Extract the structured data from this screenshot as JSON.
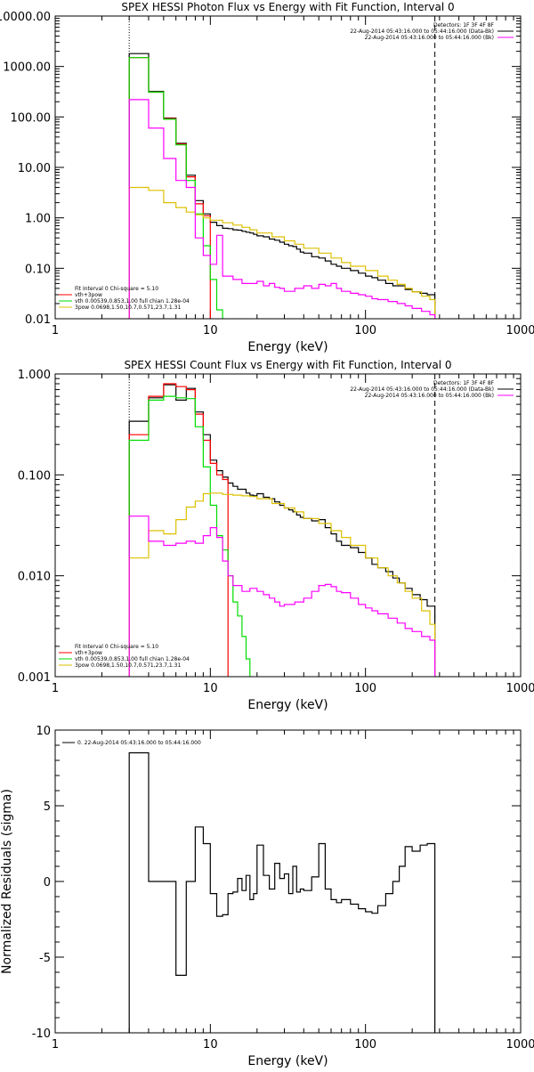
{
  "colors": {
    "axes": "#000000",
    "data": "#000000",
    "model_total": "#ff0000",
    "vth": "#00dd00",
    "power_law": "#ddc000",
    "background": "#ff00ff"
  },
  "chart_data": [
    {
      "type": "line",
      "title": "SPEX HESSI Photon Flux vs Energy with Fit Function, Interval 0",
      "xlabel": "Energy (keV)",
      "ylabel": "",
      "xscale": "log",
      "yscale": "log",
      "xlim": [
        1,
        1000
      ],
      "ylim": [
        0.01,
        10000
      ],
      "xticks": [
        1,
        10,
        100,
        1000
      ],
      "xtick_labels": [
        "1",
        "10",
        "100",
        "1000"
      ],
      "yticks": [
        0.01,
        0.1,
        1,
        10,
        100,
        1000,
        10000
      ],
      "ytick_labels": [
        "0.01",
        "0.10",
        "1.00",
        "10.00",
        "100.00",
        "1000.00",
        "10000.00"
      ],
      "vlines": [
        {
          "x": 3,
          "style": "dotted"
        },
        {
          "x": 280,
          "style": "dashed"
        }
      ],
      "legend_topright": [
        "Detectors: 1F 3F 4F 8F",
        "22-Aug-2014 05:43:16.000 to 05:44:16.000 (Data-Bk)",
        "22-Aug-2014 05:43:16.000 to 05:44:16.000 (Bk)"
      ],
      "legend_topright_colors": [
        "#ffffff",
        "#000000",
        "#ff00ff"
      ],
      "legend_bottomleft": [
        "Fit Interval 0   Chi-square = 5.10",
        "vth+3pow",
        "vth 0.00539,0.853,1.00  full chian 1.28e-04",
        "3pow 0.0698,1.50,10.7,0.571,23.7,1.31"
      ],
      "legend_bottomleft_colors": [
        "#ffffff",
        "#ff0000",
        "#00dd00",
        "#ddc000"
      ],
      "series": [
        {
          "name": "Data-Bk",
          "color": "#000000",
          "edges": [
            3,
            4,
            5,
            6,
            7,
            8,
            9,
            10,
            11,
            12,
            13,
            14,
            15,
            16,
            17,
            18,
            19,
            20,
            22,
            24,
            26,
            28,
            30,
            32,
            34,
            36,
            38,
            40,
            45,
            50,
            55,
            60,
            65,
            70,
            80,
            90,
            100,
            110,
            120,
            135,
            150,
            165,
            180,
            200,
            225,
            250,
            280
          ],
          "values": [
            1800,
            320,
            95,
            30,
            7,
            2.2,
            1.2,
            0.82,
            0.7,
            0.62,
            0.61,
            0.58,
            0.57,
            0.54,
            0.52,
            0.5,
            0.47,
            0.44,
            0.42,
            0.38,
            0.36,
            0.33,
            0.3,
            0.28,
            0.27,
            0.24,
            0.21,
            0.2,
            0.17,
            0.16,
            0.14,
            0.12,
            0.11,
            0.1,
            0.09,
            0.08,
            0.07,
            0.065,
            0.058,
            0.05,
            0.045,
            0.045,
            0.038,
            0.034,
            0.032,
            0.03
          ]
        },
        {
          "name": "vth+3pow",
          "color": "#ff0000",
          "edges": [
            3,
            4,
            5,
            6,
            7,
            8,
            9,
            10
          ],
          "values": [
            1500,
            310,
            93,
            29,
            6.5,
            1.9,
            1.1
          ]
        },
        {
          "name": "vth",
          "color": "#00dd00",
          "edges": [
            3,
            4,
            5,
            6,
            7,
            8,
            9,
            10,
            11,
            12,
            13
          ],
          "values": [
            1500,
            310,
            90,
            28,
            5.5,
            1.2,
            0.28,
            0.06,
            0.015,
            0.004
          ]
        },
        {
          "name": "3pow",
          "color": "#ddc000",
          "edges": [
            3,
            4,
            5,
            6,
            7,
            8,
            9,
            10,
            12,
            14,
            16,
            18,
            20,
            25,
            30,
            35,
            40,
            50,
            60,
            70,
            80,
            100,
            120,
            140,
            160,
            180,
            200,
            230,
            260,
            280
          ],
          "values": [
            4,
            3.5,
            2,
            1.6,
            1.3,
            1.15,
            1,
            0.9,
            0.8,
            0.72,
            0.65,
            0.58,
            0.5,
            0.42,
            0.35,
            0.3,
            0.25,
            0.2,
            0.16,
            0.13,
            0.11,
            0.09,
            0.07,
            0.058,
            0.048,
            0.04,
            0.034,
            0.028,
            0.024
          ]
        },
        {
          "name": "Bk",
          "color": "#ff00ff",
          "edges": [
            3,
            4,
            5,
            6,
            7,
            8,
            9,
            10,
            11,
            12,
            14,
            16,
            18,
            20,
            22,
            24,
            26,
            28,
            30,
            35,
            40,
            45,
            50,
            55,
            60,
            65,
            70,
            80,
            90,
            100,
            110,
            120,
            140,
            160,
            180,
            200,
            230,
            260,
            280
          ],
          "values": [
            220,
            60,
            15,
            5.5,
            4,
            0.4,
            0.18,
            0.12,
            0.45,
            0.07,
            0.06,
            0.05,
            0.05,
            0.055,
            0.045,
            0.05,
            0.042,
            0.04,
            0.035,
            0.04,
            0.045,
            0.04,
            0.048,
            0.045,
            0.05,
            0.04,
            0.035,
            0.032,
            0.03,
            0.028,
            0.025,
            0.024,
            0.022,
            0.02,
            0.018,
            0.016,
            0.014,
            0.012
          ]
        }
      ]
    },
    {
      "type": "line",
      "title": "SPEX HESSI Count Flux vs Energy with Fit Function, Interval 0",
      "xlabel": "Energy (keV)",
      "ylabel": "",
      "xscale": "log",
      "yscale": "log",
      "xlim": [
        1,
        1000
      ],
      "ylim": [
        0.001,
        1
      ],
      "xticks": [
        1,
        10,
        100,
        1000
      ],
      "xtick_labels": [
        "1",
        "10",
        "100",
        "1000"
      ],
      "yticks": [
        0.001,
        0.01,
        0.1,
        1
      ],
      "ytick_labels": [
        "0.001",
        "0.010",
        "0.100",
        "1.000"
      ],
      "vlines": [
        {
          "x": 3,
          "style": "dotted"
        },
        {
          "x": 280,
          "style": "dashed"
        }
      ],
      "legend_topright": [
        "Detectors: 1F 3F 4F 8F",
        "22-Aug-2014 05:43:16.000 to 05:44:16.000 (Data-Bk)",
        "22-Aug-2014 05:43:16.000 to 05:44:16.000 (Bk)"
      ],
      "legend_topright_colors": [
        "#ffffff",
        "#000000",
        "#ff00ff"
      ],
      "legend_bottomleft": [
        "Fit Interval 0   Chi-square = 5.10",
        "vth+3pow",
        "vth 0.00539,0.853,1.00  full chian 1.28e-04",
        "3pow 0.0698,1.50,10.7,0.571,23.7,1.31"
      ],
      "legend_bottomleft_colors": [
        "#ffffff",
        "#ff0000",
        "#00dd00",
        "#ddc000"
      ],
      "series": [
        {
          "name": "Data-Bk",
          "color": "#000000",
          "edges": [
            3,
            4,
            5,
            6,
            7,
            8,
            9,
            10,
            11,
            12,
            13,
            14,
            15,
            16,
            17,
            18,
            19,
            20,
            22,
            24,
            26,
            28,
            30,
            32,
            34,
            36,
            38,
            40,
            45,
            50,
            55,
            60,
            65,
            70,
            80,
            90,
            100,
            110,
            120,
            135,
            150,
            165,
            180,
            200,
            225,
            250,
            280
          ],
          "values": [
            0.34,
            0.58,
            0.78,
            0.55,
            0.72,
            0.42,
            0.25,
            0.14,
            0.11,
            0.095,
            0.083,
            0.077,
            0.072,
            0.072,
            0.066,
            0.063,
            0.062,
            0.065,
            0.06,
            0.058,
            0.054,
            0.05,
            0.047,
            0.045,
            0.043,
            0.04,
            0.038,
            0.037,
            0.035,
            0.036,
            0.03,
            0.026,
            0.022,
            0.02,
            0.019,
            0.017,
            0.015,
            0.013,
            0.012,
            0.011,
            0.0095,
            0.0085,
            0.0075,
            0.0065,
            0.0058,
            0.005
          ]
        },
        {
          "name": "vth+3pow",
          "color": "#ff0000",
          "edges": [
            3,
            4,
            5,
            6,
            7,
            8,
            9,
            10,
            11,
            12,
            13
          ],
          "values": [
            0.25,
            0.6,
            0.8,
            0.75,
            0.7,
            0.4,
            0.22,
            0.13,
            0.1,
            0.09
          ]
        },
        {
          "name": "vth",
          "color": "#00dd00",
          "edges": [
            3,
            4,
            5,
            6,
            7,
            8,
            9,
            10,
            11,
            12,
            13,
            14,
            15,
            16,
            17,
            18
          ],
          "values": [
            0.22,
            0.55,
            0.6,
            0.58,
            0.57,
            0.3,
            0.12,
            0.05,
            0.025,
            0.018,
            0.01,
            0.0055,
            0.004,
            0.0025,
            0.0015
          ]
        },
        {
          "name": "3pow",
          "color": "#ddc000",
          "edges": [
            3,
            4,
            5,
            6,
            7,
            8,
            9,
            10,
            12,
            14,
            16,
            18,
            20,
            25,
            30,
            35,
            40,
            50,
            60,
            70,
            80,
            100,
            120,
            140,
            160,
            180,
            200,
            230,
            260,
            280
          ],
          "values": [
            0.015,
            0.028,
            0.026,
            0.036,
            0.048,
            0.055,
            0.065,
            0.066,
            0.064,
            0.063,
            0.062,
            0.061,
            0.058,
            0.052,
            0.047,
            0.043,
            0.037,
            0.033,
            0.028,
            0.024,
            0.02,
            0.015,
            0.012,
            0.01,
            0.0085,
            0.007,
            0.006,
            0.0045,
            0.0033
          ]
        },
        {
          "name": "Bk",
          "color": "#ff00ff",
          "edges": [
            3,
            4,
            5,
            6,
            7,
            8,
            9,
            10,
            11,
            12,
            13,
            14,
            16,
            18,
            20,
            22,
            24,
            26,
            28,
            30,
            35,
            40,
            45,
            50,
            55,
            60,
            65,
            70,
            80,
            90,
            100,
            110,
            120,
            140,
            160,
            180,
            200,
            230,
            260,
            280
          ],
          "values": [
            0.039,
            0.022,
            0.02,
            0.021,
            0.022,
            0.021,
            0.025,
            0.03,
            0.024,
            0.014,
            0.01,
            0.008,
            0.007,
            0.0075,
            0.007,
            0.0065,
            0.006,
            0.0055,
            0.005,
            0.0052,
            0.0055,
            0.006,
            0.007,
            0.008,
            0.0082,
            0.0078,
            0.007,
            0.0068,
            0.006,
            0.0052,
            0.0048,
            0.0045,
            0.0042,
            0.0038,
            0.0034,
            0.003,
            0.0028,
            0.0025,
            0.0023
          ]
        }
      ]
    },
    {
      "type": "line",
      "title": "",
      "xlabel": "Energy (keV)",
      "ylabel": "Normalized Residuals (sigma)",
      "xscale": "log",
      "yscale": "linear",
      "xlim": [
        1,
        1000
      ],
      "ylim": [
        -10,
        10
      ],
      "xticks": [
        1,
        10,
        100,
        1000
      ],
      "xtick_labels": [
        "1",
        "10",
        "100",
        "1000"
      ],
      "yticks": [
        -10,
        -5,
        0,
        5,
        10
      ],
      "ytick_labels": [
        "-10",
        "-5",
        "0",
        "5",
        "10"
      ],
      "legend_topleft": [
        "0. 22-Aug-2014 05:43:16.000 to 05:44:16.000"
      ],
      "series": [
        {
          "name": "0. 22-Aug-2014 05:43:16.000 to 05:44:16.000",
          "color": "#000000",
          "edges": [
            3,
            4,
            5,
            6,
            7,
            8,
            9,
            10,
            11,
            12,
            13,
            14,
            15,
            16,
            17,
            18,
            19,
            20,
            22,
            24,
            26,
            28,
            30,
            32,
            34,
            36,
            38,
            40,
            45,
            50,
            55,
            60,
            65,
            70,
            80,
            90,
            100,
            110,
            120,
            135,
            150,
            165,
            180,
            200,
            225,
            250,
            280
          ],
          "values": [
            8.5,
            0,
            0,
            -6.2,
            0,
            3.6,
            2.5,
            -0.8,
            -2.3,
            -2.2,
            -0.8,
            -0.7,
            0.2,
            -0.6,
            0.4,
            -1.2,
            -0.8,
            2.4,
            0.4,
            -0.5,
            1.2,
            0.2,
            0.5,
            -0.8,
            1.0,
            -0.7,
            -0.5,
            -0.6,
            0.3,
            2.5,
            -0.5,
            -1.2,
            -1.4,
            -1.2,
            -1.5,
            -1.8,
            -2.0,
            -2.1,
            -1.6,
            -0.8,
            0.0,
            1.0,
            2.3,
            2.0,
            2.4,
            2.5
          ],
          "drop_to": -10
        }
      ]
    }
  ]
}
